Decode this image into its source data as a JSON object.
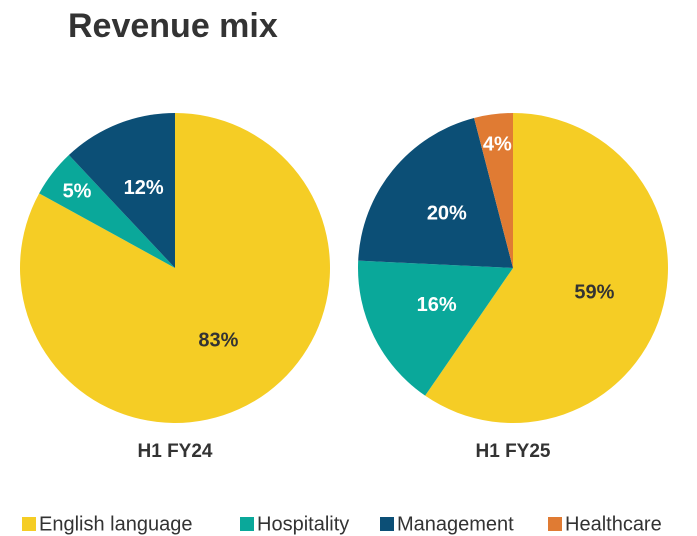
{
  "title": "Revenue mix",
  "legend": [
    {
      "name": "English language",
      "color": "#f5cd25"
    },
    {
      "name": "Hospitality",
      "color": "#0aa89a"
    },
    {
      "name": "Management",
      "color": "#0c4f76"
    },
    {
      "name": "Healthcare",
      "color": "#e07b33"
    }
  ],
  "chart_data": [
    {
      "type": "pie",
      "label": "H1 FY24",
      "categories": [
        "English language",
        "Hospitality",
        "Management"
      ],
      "values": [
        83,
        5,
        12
      ],
      "value_labels": [
        "83%",
        "5%",
        "12%"
      ]
    },
    {
      "type": "pie",
      "label": "H1 FY25",
      "categories": [
        "English language",
        "Hospitality",
        "Management",
        "Healthcare"
      ],
      "values": [
        59,
        16,
        20,
        4
      ],
      "value_labels": [
        "59%",
        "16%",
        "20%",
        "4%"
      ]
    }
  ]
}
